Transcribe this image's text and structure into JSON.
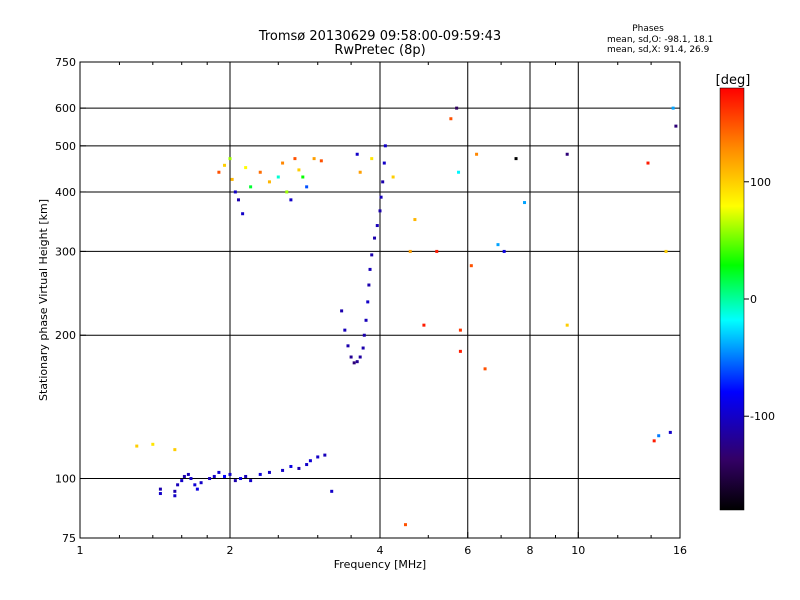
{
  "chart_data": {
    "type": "scatter",
    "title": "Tromsø 20130629 09:58:00-09:59:43",
    "subtitle": "RwPretec (8p)",
    "xlabel": "Frequency [MHz]",
    "ylabel": "Stationary phase Virtual Height [km]",
    "x_scale": "log",
    "y_scale": "log",
    "xlim": [
      1,
      16
    ],
    "ylim": [
      75,
      750
    ],
    "x_ticks": [
      1,
      2,
      4,
      6,
      8,
      10,
      16
    ],
    "y_ticks": [
      75,
      100,
      200,
      300,
      400,
      500,
      600,
      750
    ],
    "grid": true,
    "phase_stats": {
      "title": "Phases",
      "line_o": "mean, sd,O: -98.1, 18.1",
      "line_x": "mean, sd,X:  91.4, 26.9"
    },
    "colorbar": {
      "label": "[deg]",
      "min": -180,
      "max": 180,
      "ticks": [
        100,
        0,
        -100
      ],
      "colors": [
        "#ff0000",
        "#ff8800",
        "#ffff00",
        "#00ff00",
        "#00ffff",
        "#0000ff",
        "#330066",
        "#000000"
      ]
    },
    "series": [
      {
        "points": [
          [
            1.45,
            93,
            -100
          ],
          [
            1.45,
            95,
            -110
          ],
          [
            1.55,
            92,
            -100
          ],
          [
            1.55,
            94,
            -110
          ],
          [
            1.57,
            97,
            -105
          ],
          [
            1.6,
            99,
            -100
          ],
          [
            1.62,
            101,
            -110
          ],
          [
            1.65,
            102,
            -105
          ],
          [
            1.67,
            100,
            -100
          ],
          [
            1.7,
            97,
            -95
          ],
          [
            1.72,
            95,
            -90
          ],
          [
            1.75,
            98,
            -100
          ],
          [
            1.82,
            100,
            -105
          ],
          [
            1.86,
            101,
            -100
          ],
          [
            1.9,
            103,
            -95
          ],
          [
            1.95,
            101,
            -80
          ],
          [
            2.0,
            102,
            -100
          ],
          [
            2.05,
            99,
            -110
          ],
          [
            2.1,
            100,
            -90
          ],
          [
            2.15,
            101,
            -105
          ],
          [
            2.2,
            99,
            -100
          ],
          [
            2.3,
            102,
            -95
          ],
          [
            2.4,
            103,
            -100
          ],
          [
            2.55,
            104,
            -100
          ],
          [
            2.65,
            106,
            -90
          ],
          [
            2.75,
            105,
            -110
          ],
          [
            2.85,
            107,
            -100
          ],
          [
            2.9,
            109,
            -95
          ],
          [
            3.0,
            111,
            -100
          ],
          [
            3.1,
            112,
            -105
          ],
          [
            3.2,
            94,
            -100
          ],
          [
            3.35,
            225,
            -110
          ],
          [
            3.4,
            205,
            -105
          ],
          [
            3.45,
            190,
            -110
          ],
          [
            3.5,
            180,
            -120
          ],
          [
            3.55,
            175,
            -130
          ],
          [
            3.6,
            176,
            -120
          ],
          [
            3.65,
            180,
            -115
          ],
          [
            3.7,
            188,
            -110
          ],
          [
            3.72,
            200,
            -110
          ],
          [
            3.75,
            215,
            -105
          ],
          [
            3.78,
            235,
            -100
          ],
          [
            3.8,
            255,
            -110
          ],
          [
            3.82,
            275,
            -105
          ],
          [
            3.85,
            295,
            -110
          ],
          [
            3.9,
            320,
            -110
          ],
          [
            3.95,
            340,
            -105
          ],
          [
            4.0,
            365,
            -110
          ],
          [
            4.02,
            390,
            -105
          ],
          [
            4.05,
            420,
            -110
          ],
          [
            4.08,
            460,
            -100
          ],
          [
            4.1,
            500,
            -100
          ],
          [
            1.9,
            440,
            150
          ],
          [
            1.95,
            455,
            100
          ],
          [
            2.0,
            470,
            60
          ],
          [
            2.02,
            425,
            110
          ],
          [
            2.05,
            400,
            -100
          ],
          [
            2.08,
            385,
            -110
          ],
          [
            2.12,
            360,
            -100
          ],
          [
            2.15,
            450,
            80
          ],
          [
            2.2,
            410,
            20
          ],
          [
            2.3,
            440,
            140
          ],
          [
            2.4,
            420,
            110
          ],
          [
            2.5,
            430,
            -10
          ],
          [
            2.55,
            460,
            130
          ],
          [
            2.6,
            400,
            60
          ],
          [
            2.65,
            385,
            -100
          ],
          [
            2.7,
            470,
            150
          ],
          [
            2.75,
            445,
            100
          ],
          [
            2.8,
            430,
            30
          ],
          [
            2.85,
            410,
            -60
          ],
          [
            2.95,
            470,
            120
          ],
          [
            3.05,
            465,
            150
          ],
          [
            3.6,
            480,
            -100
          ],
          [
            3.65,
            440,
            120
          ],
          [
            3.85,
            470,
            90
          ],
          [
            4.25,
            430,
            100
          ],
          [
            4.6,
            300,
            120
          ],
          [
            4.7,
            350,
            110
          ],
          [
            4.9,
            210,
            170
          ],
          [
            5.2,
            300,
            170
          ],
          [
            5.55,
            570,
            150
          ],
          [
            5.7,
            600,
            -140
          ],
          [
            5.75,
            440,
            -20
          ],
          [
            5.8,
            205,
            160
          ],
          [
            5.8,
            185,
            170
          ],
          [
            6.1,
            280,
            150
          ],
          [
            6.25,
            480,
            130
          ],
          [
            6.5,
            170,
            150
          ],
          [
            6.9,
            310,
            -40
          ],
          [
            7.1,
            300,
            -90
          ],
          [
            7.5,
            470,
            -180
          ],
          [
            7.8,
            380,
            -40
          ],
          [
            9.5,
            480,
            -130
          ],
          [
            9.5,
            210,
            100
          ],
          [
            4.5,
            80,
            150
          ],
          [
            13.8,
            460,
            170
          ],
          [
            14.2,
            120,
            170
          ],
          [
            14.5,
            123,
            -50
          ],
          [
            15.0,
            300,
            100
          ],
          [
            15.3,
            125,
            -100
          ],
          [
            15.5,
            600,
            -40
          ],
          [
            15.7,
            550,
            -130
          ],
          [
            1.3,
            117,
            100
          ],
          [
            1.4,
            118,
            90
          ],
          [
            1.55,
            115,
            100
          ]
        ]
      }
    ]
  }
}
